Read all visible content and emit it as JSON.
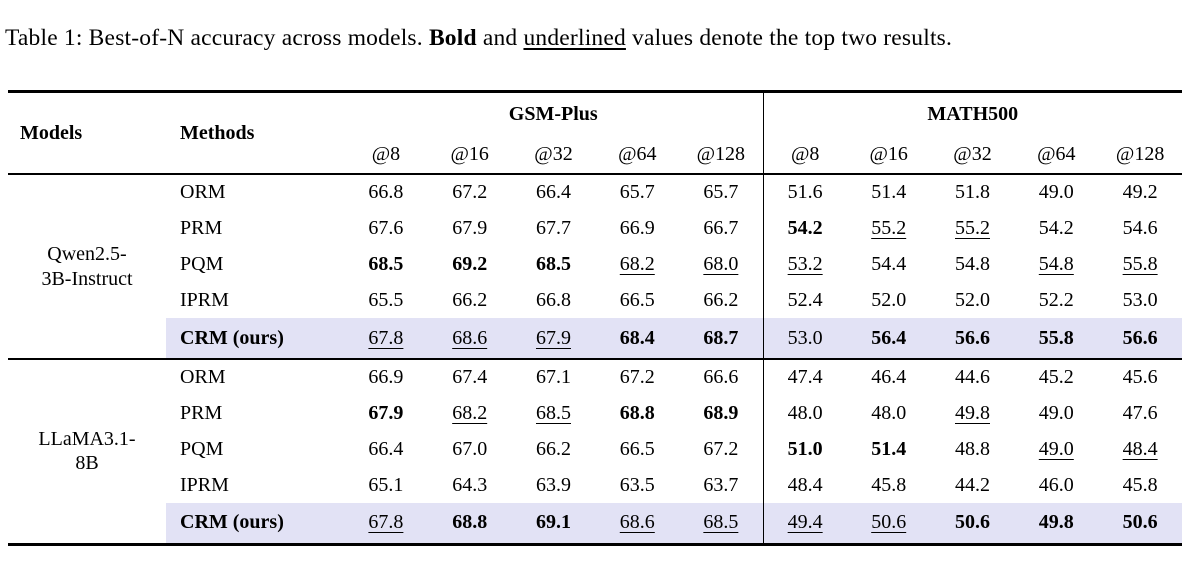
{
  "caption": {
    "prefix": "Table 1: Best-of-N accuracy across models. ",
    "bold_word": "Bold",
    "mid": " and ",
    "underlined_word": "underlined",
    "suffix": " values denote the top two results."
  },
  "colors": {
    "highlight": "#e2e2f5",
    "rule": "#000000",
    "text": "#000000",
    "background": "#ffffff"
  },
  "table": {
    "header": {
      "models": "Models",
      "methods": "Methods",
      "group_gsm": "GSM-Plus",
      "group_math": "MATH500",
      "n_labels": [
        "@8",
        "@16",
        "@32",
        "@64",
        "@128"
      ]
    },
    "groups": [
      {
        "model_line1": "Qwen2.5-",
        "model_line2": "3B-Instruct",
        "rows": [
          {
            "method": "ORM",
            "c": [
              {
                "v": "66.8",
                "s": ""
              },
              {
                "v": "67.2",
                "s": ""
              },
              {
                "v": "66.4",
                "s": ""
              },
              {
                "v": "65.7",
                "s": ""
              },
              {
                "v": "65.7",
                "s": ""
              },
              {
                "v": "51.6",
                "s": ""
              },
              {
                "v": "51.4",
                "s": ""
              },
              {
                "v": "51.8",
                "s": ""
              },
              {
                "v": "49.0",
                "s": ""
              },
              {
                "v": "49.2",
                "s": ""
              }
            ]
          },
          {
            "method": "PRM",
            "c": [
              {
                "v": "67.6",
                "s": ""
              },
              {
                "v": "67.9",
                "s": ""
              },
              {
                "v": "67.7",
                "s": ""
              },
              {
                "v": "66.9",
                "s": ""
              },
              {
                "v": "66.7",
                "s": ""
              },
              {
                "v": "54.2",
                "s": "b"
              },
              {
                "v": "55.2",
                "s": "u"
              },
              {
                "v": "55.2",
                "s": "u"
              },
              {
                "v": "54.2",
                "s": ""
              },
              {
                "v": "54.6",
                "s": ""
              }
            ]
          },
          {
            "method": "PQM",
            "c": [
              {
                "v": "68.5",
                "s": "b"
              },
              {
                "v": "69.2",
                "s": "b"
              },
              {
                "v": "68.5",
                "s": "b"
              },
              {
                "v": "68.2",
                "s": "u"
              },
              {
                "v": "68.0",
                "s": "u"
              },
              {
                "v": "53.2",
                "s": "u"
              },
              {
                "v": "54.4",
                "s": ""
              },
              {
                "v": "54.8",
                "s": ""
              },
              {
                "v": "54.8",
                "s": "u"
              },
              {
                "v": "55.8",
                "s": "u"
              }
            ]
          },
          {
            "method": "IPRM",
            "c": [
              {
                "v": "65.5",
                "s": ""
              },
              {
                "v": "66.2",
                "s": ""
              },
              {
                "v": "66.8",
                "s": ""
              },
              {
                "v": "66.5",
                "s": ""
              },
              {
                "v": "66.2",
                "s": ""
              },
              {
                "v": "52.4",
                "s": ""
              },
              {
                "v": "52.0",
                "s": ""
              },
              {
                "v": "52.0",
                "s": ""
              },
              {
                "v": "52.2",
                "s": ""
              },
              {
                "v": "53.0",
                "s": ""
              }
            ]
          },
          {
            "method": "CRM (ours)",
            "c": [
              {
                "v": "67.8",
                "s": "u"
              },
              {
                "v": "68.6",
                "s": "u"
              },
              {
                "v": "67.9",
                "s": "u"
              },
              {
                "v": "68.4",
                "s": "b"
              },
              {
                "v": "68.7",
                "s": "b"
              },
              {
                "v": "53.0",
                "s": ""
              },
              {
                "v": "56.4",
                "s": "b"
              },
              {
                "v": "56.6",
                "s": "b"
              },
              {
                "v": "55.8",
                "s": "b"
              },
              {
                "v": "56.6",
                "s": "b"
              }
            ]
          }
        ]
      },
      {
        "model_line1": "LLaMA3.1-",
        "model_line2": "8B",
        "rows": [
          {
            "method": "ORM",
            "c": [
              {
                "v": "66.9",
                "s": ""
              },
              {
                "v": "67.4",
                "s": ""
              },
              {
                "v": "67.1",
                "s": ""
              },
              {
                "v": "67.2",
                "s": ""
              },
              {
                "v": "66.6",
                "s": ""
              },
              {
                "v": "47.4",
                "s": ""
              },
              {
                "v": "46.4",
                "s": ""
              },
              {
                "v": "44.6",
                "s": ""
              },
              {
                "v": "45.2",
                "s": ""
              },
              {
                "v": "45.6",
                "s": ""
              }
            ]
          },
          {
            "method": "PRM",
            "c": [
              {
                "v": "67.9",
                "s": "b"
              },
              {
                "v": "68.2",
                "s": "u"
              },
              {
                "v": "68.5",
                "s": "u"
              },
              {
                "v": "68.8",
                "s": "b"
              },
              {
                "v": "68.9",
                "s": "b"
              },
              {
                "v": "48.0",
                "s": ""
              },
              {
                "v": "48.0",
                "s": ""
              },
              {
                "v": "49.8",
                "s": "u"
              },
              {
                "v": "49.0",
                "s": ""
              },
              {
                "v": "47.6",
                "s": ""
              }
            ]
          },
          {
            "method": "PQM",
            "c": [
              {
                "v": "66.4",
                "s": ""
              },
              {
                "v": "67.0",
                "s": ""
              },
              {
                "v": "66.2",
                "s": ""
              },
              {
                "v": "66.5",
                "s": ""
              },
              {
                "v": "67.2",
                "s": ""
              },
              {
                "v": "51.0",
                "s": "b"
              },
              {
                "v": "51.4",
                "s": "b"
              },
              {
                "v": "48.8",
                "s": ""
              },
              {
                "v": "49.0",
                "s": "u"
              },
              {
                "v": "48.4",
                "s": "u"
              }
            ]
          },
          {
            "method": "IPRM",
            "c": [
              {
                "v": "65.1",
                "s": ""
              },
              {
                "v": "64.3",
                "s": ""
              },
              {
                "v": "63.9",
                "s": ""
              },
              {
                "v": "63.5",
                "s": ""
              },
              {
                "v": "63.7",
                "s": ""
              },
              {
                "v": "48.4",
                "s": ""
              },
              {
                "v": "45.8",
                "s": ""
              },
              {
                "v": "44.2",
                "s": ""
              },
              {
                "v": "46.0",
                "s": ""
              },
              {
                "v": "45.8",
                "s": ""
              }
            ]
          },
          {
            "method": "CRM (ours)",
            "c": [
              {
                "v": "67.8",
                "s": "u"
              },
              {
                "v": "68.8",
                "s": "b"
              },
              {
                "v": "69.1",
                "s": "b"
              },
              {
                "v": "68.6",
                "s": "u"
              },
              {
                "v": "68.5",
                "s": "u"
              },
              {
                "v": "49.4",
                "s": "u"
              },
              {
                "v": "50.6",
                "s": "u"
              },
              {
                "v": "50.6",
                "s": "b"
              },
              {
                "v": "49.8",
                "s": "b"
              },
              {
                "v": "50.6",
                "s": "b"
              }
            ]
          }
        ]
      }
    ]
  }
}
